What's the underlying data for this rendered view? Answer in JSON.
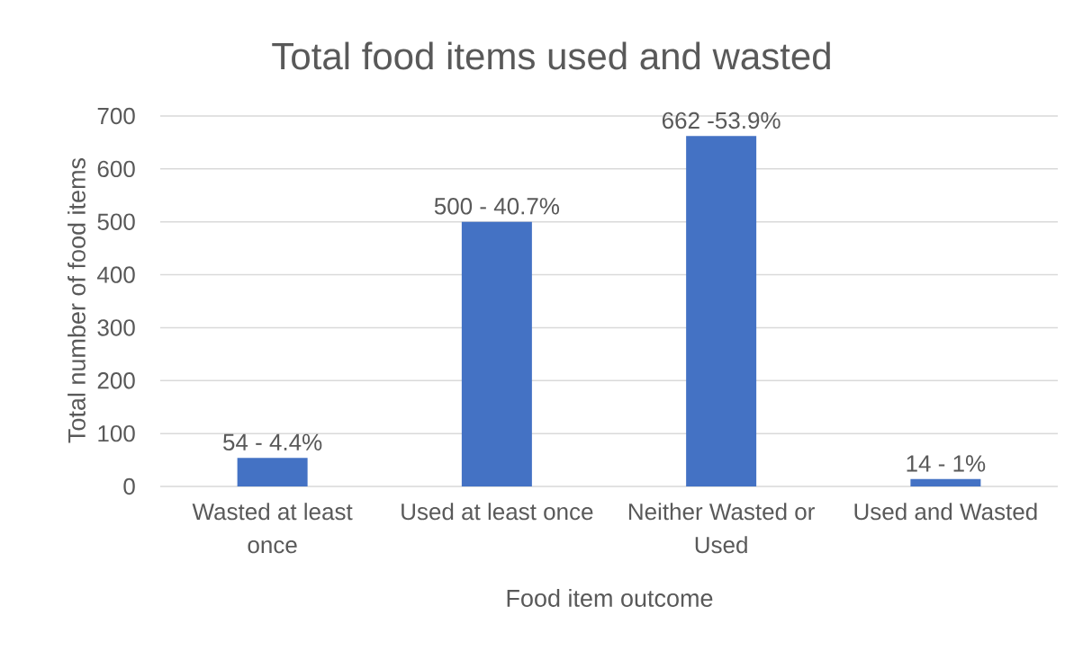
{
  "chart_data": {
    "type": "bar",
    "title": "Total food items used and wasted",
    "xlabel": "Food item outcome",
    "ylabel": "Total number of food items",
    "categories": [
      "Wasted at least once",
      "Used at least once",
      "Neither Wasted or Used",
      "Used and Wasted"
    ],
    "values": [
      54,
      500,
      662,
      14
    ],
    "value_labels": [
      "54 - 4.4%",
      "500 - 40.7%",
      "662 -53.9%",
      "14 - 1%"
    ],
    "color": "#4472c4",
    "ylim": [
      0,
      700
    ],
    "yticks": [
      0,
      100,
      200,
      300,
      400,
      500,
      600,
      700
    ],
    "grid": "y"
  }
}
